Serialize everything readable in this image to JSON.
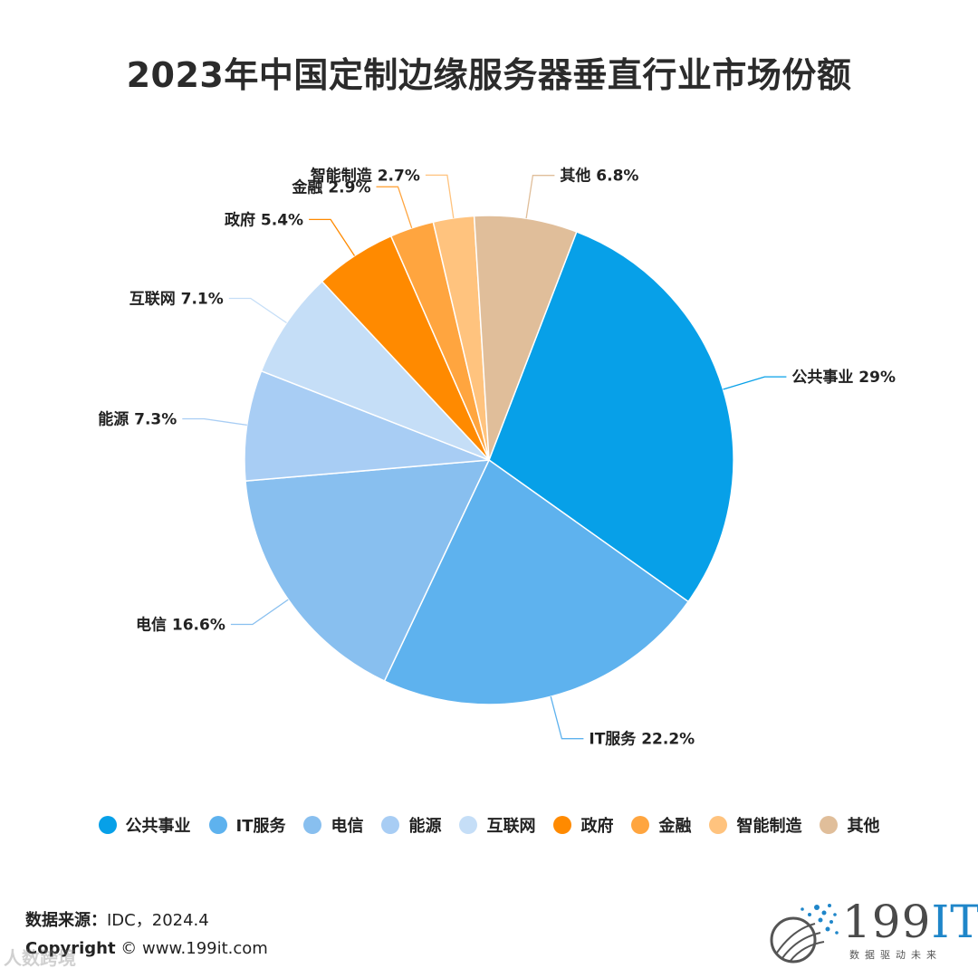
{
  "chart_data": {
    "type": "pie",
    "title": "2023年中国定制边缘服务器垂直行业市场份额",
    "categories": [
      "公共事业",
      "IT服务",
      "电信",
      "能源",
      "互联网",
      "政府",
      "金融",
      "智能制造",
      "其他"
    ],
    "values": [
      29,
      22.2,
      16.6,
      7.3,
      7.1,
      5.4,
      2.9,
      2.7,
      6.8
    ],
    "unit": "%",
    "data_labels": [
      "公共事业 29%",
      "IT服务 22.2%",
      "电信 16.6%",
      "能源 7.3%",
      "互联网 7.1%",
      "政府 5.4%",
      "金融 2.9%",
      "智能制造 2.7%",
      "其他 6.8%"
    ],
    "colors": [
      "#07a0e8",
      "#5eb2ee",
      "#88bfef",
      "#a8cdf4",
      "#c5def7",
      "#ff8a00",
      "#ffa53f",
      "#ffc37e",
      "#e0be9a"
    ],
    "legend_position": "bottom"
  },
  "footer": {
    "source_key": "数据来源：",
    "source_value": "IDC，2024.4",
    "copyright_key": "Copyright",
    "copyright_value": "©  www.199it.com"
  },
  "logo": {
    "text_num": "199",
    "text_it": "IT",
    "tagline": "数据驱动未来"
  },
  "watermark": "人数跨境"
}
